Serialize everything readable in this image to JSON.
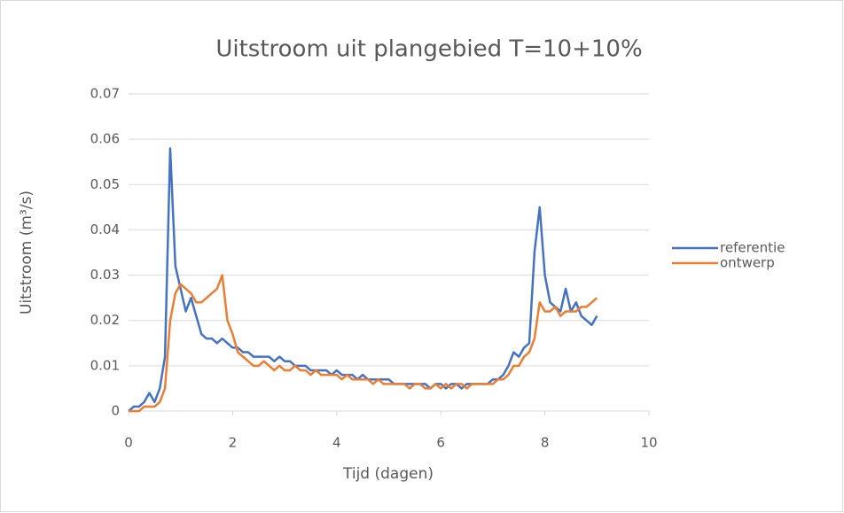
{
  "chart_data": {
    "type": "line",
    "title": "Uitstroom uit plangebied T=10+10%",
    "x_label": "Tijd (dagen)",
    "y_label": "Uitstroom (m³/s)",
    "x": [
      0,
      0.1,
      0.2,
      0.3,
      0.4,
      0.5,
      0.6,
      0.7,
      0.8,
      0.9,
      1,
      1.1,
      1.2,
      1.3,
      1.4,
      1.5,
      1.6,
      1.7,
      1.8,
      1.9,
      2,
      2.1,
      2.2,
      2.3,
      2.4,
      2.5,
      2.6,
      2.7,
      2.8,
      2.9,
      3,
      3.1,
      3.2,
      3.3,
      3.4,
      3.5,
      3.6,
      3.7,
      3.8,
      3.9,
      4,
      4.1,
      4.2,
      4.3,
      4.4,
      4.5,
      4.6,
      4.7,
      4.8,
      4.9,
      5,
      5.1,
      5.2,
      5.3,
      5.4,
      5.5,
      5.6,
      5.7,
      5.8,
      5.9,
      6,
      6.1,
      6.2,
      6.3,
      6.4,
      6.5,
      6.6,
      6.7,
      6.8,
      6.9,
      7,
      7.1,
      7.2,
      7.3,
      7.4,
      7.5,
      7.6,
      7.7,
      7.8,
      7.9,
      8,
      8.1,
      8.2,
      8.3,
      8.4,
      8.5,
      8.6,
      8.7,
      8.8,
      8.9,
      9
    ],
    "series": [
      {
        "name": "referentie",
        "color": "#4472c4",
        "values": [
          0,
          0.001,
          0.001,
          0.002,
          0.004,
          0.002,
          0.005,
          0.012,
          0.058,
          0.032,
          0.027,
          0.022,
          0.025,
          0.021,
          0.017,
          0.016,
          0.016,
          0.015,
          0.016,
          0.015,
          0.014,
          0.014,
          0.013,
          0.013,
          0.012,
          0.012,
          0.012,
          0.012,
          0.011,
          0.012,
          0.011,
          0.011,
          0.01,
          0.01,
          0.01,
          0.009,
          0.009,
          0.009,
          0.009,
          0.008,
          0.009,
          0.008,
          0.008,
          0.008,
          0.007,
          0.008,
          0.007,
          0.007,
          0.007,
          0.007,
          0.007,
          0.006,
          0.006,
          0.006,
          0.006,
          0.006,
          0.006,
          0.006,
          0.005,
          0.006,
          0.006,
          0.005,
          0.006,
          0.006,
          0.005,
          0.006,
          0.006,
          0.006,
          0.006,
          0.006,
          0.007,
          0.007,
          0.008,
          0.01,
          0.013,
          0.012,
          0.014,
          0.015,
          0.035,
          0.045,
          0.03,
          0.024,
          0.023,
          0.022,
          0.027,
          0.022,
          0.024,
          0.021,
          0.02,
          0.019,
          0.021
        ]
      },
      {
        "name": "ontwerp",
        "color": "#ed7d31",
        "values": [
          0,
          0,
          0,
          0.001,
          0.001,
          0.001,
          0.002,
          0.005,
          0.02,
          0.026,
          0.028,
          0.027,
          0.026,
          0.024,
          0.024,
          0.025,
          0.026,
          0.027,
          0.03,
          0.02,
          0.017,
          0.013,
          0.012,
          0.011,
          0.01,
          0.01,
          0.011,
          0.01,
          0.009,
          0.01,
          0.009,
          0.009,
          0.01,
          0.009,
          0.009,
          0.008,
          0.009,
          0.008,
          0.008,
          0.008,
          0.008,
          0.007,
          0.008,
          0.007,
          0.007,
          0.007,
          0.007,
          0.006,
          0.007,
          0.006,
          0.006,
          0.006,
          0.006,
          0.006,
          0.005,
          0.006,
          0.006,
          0.005,
          0.005,
          0.006,
          0.005,
          0.006,
          0.005,
          0.006,
          0.006,
          0.005,
          0.006,
          0.006,
          0.006,
          0.006,
          0.006,
          0.007,
          0.007,
          0.008,
          0.01,
          0.01,
          0.012,
          0.013,
          0.016,
          0.024,
          0.022,
          0.022,
          0.023,
          0.021,
          0.022,
          0.022,
          0.022,
          0.023,
          0.023,
          0.024,
          0.025
        ]
      }
    ],
    "xlim": [
      0,
      10
    ],
    "xticks": [
      0,
      2,
      4,
      6,
      8,
      10
    ],
    "ylim": [
      0,
      0.07
    ],
    "yticks": [
      0,
      0.01,
      0.02,
      0.03,
      0.04,
      0.05,
      0.06,
      0.07
    ],
    "grid": true,
    "legend": "right"
  }
}
